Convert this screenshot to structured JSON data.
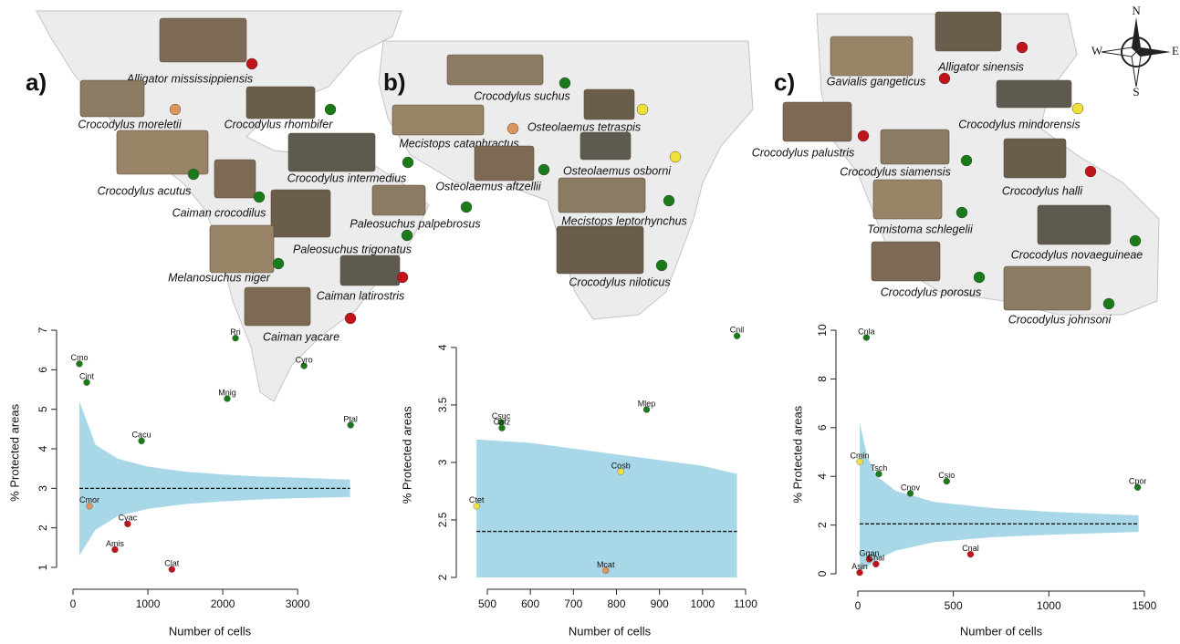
{
  "maps": [
    {
      "label": "a)",
      "species": [
        {
          "name": "Alligator mississippiensis",
          "color": "#c0141a"
        },
        {
          "name": "Crocodylus moreletii",
          "color": "#d9955a"
        },
        {
          "name": "Crocodylus rhombifer",
          "color": "#1a7a1a"
        },
        {
          "name": "Crocodylus acutus",
          "color": "#1a7a1a"
        },
        {
          "name": "Crocodylus intermedius",
          "color": "#1a7a1a"
        },
        {
          "name": "Caiman crocodilus",
          "color": "#1a7a1a"
        },
        {
          "name": "Paleosuchus palpebrosus",
          "color": "#1a7a1a"
        },
        {
          "name": "Paleosuchus trigonatus",
          "color": "#1a7a1a"
        },
        {
          "name": "Melanosuchus niger",
          "color": "#1a7a1a"
        },
        {
          "name": "Caiman latirostris",
          "color": "#c0141a"
        },
        {
          "name": "Caiman yacare",
          "color": "#c0141a"
        }
      ]
    },
    {
      "label": "b)",
      "species": [
        {
          "name": "Crocodylus suchus",
          "color": "#1a7a1a"
        },
        {
          "name": "Osteolaemus tetraspis",
          "color": "#f0e03a"
        },
        {
          "name": "Mecistops cataphractus",
          "color": "#d9955a"
        },
        {
          "name": "Osteolaemus osborni",
          "color": "#f0e03a"
        },
        {
          "name": "Osteolaemus aftzellii",
          "color": "#1a7a1a"
        },
        {
          "name": "Mecistops leptorhynchus",
          "color": "#1a7a1a"
        },
        {
          "name": "Crocodylus niloticus",
          "color": "#1a7a1a"
        }
      ]
    },
    {
      "label": "c)",
      "species": [
        {
          "name": "Alligator sinensis",
          "color": "#c0141a"
        },
        {
          "name": "Gavialis gangeticus",
          "color": "#c0141a"
        },
        {
          "name": "Crocodylus mindorensis",
          "color": "#f0e03a"
        },
        {
          "name": "Crocodylus palustris",
          "color": "#c0141a"
        },
        {
          "name": "Crocodylus siamensis",
          "color": "#1a7a1a"
        },
        {
          "name": "Crocodylus halli",
          "color": "#c0141a"
        },
        {
          "name": "Tomistoma schlegelii",
          "color": "#1a7a1a"
        },
        {
          "name": "Crocodylus novaeguineae",
          "color": "#1a7a1a"
        },
        {
          "name": "Crocodylus porosus",
          "color": "#1a7a1a"
        },
        {
          "name": "Crocodylus johnsoni",
          "color": "#1a7a1a"
        }
      ]
    }
  ],
  "compass": {
    "n": "N",
    "s": "S",
    "e": "E",
    "w": "W"
  },
  "chart_data": [
    {
      "type": "scatter",
      "xlabel": "Number of cells",
      "ylabel": "% Protected areas",
      "xlim": [
        -100,
        3900
      ],
      "ylim": [
        0.7,
        7.1
      ],
      "xticks": [
        0,
        1000,
        2000,
        3000
      ],
      "yticks": [
        1,
        2,
        3,
        4,
        5,
        6,
        7
      ],
      "x": [
        85,
        183,
        2170,
        3085,
        2060,
        3707,
        915,
        220,
        730,
        560,
        1320
      ],
      "values": [
        6.15,
        5.68,
        6.8,
        6.1,
        5.27,
        4.6,
        4.2,
        2.55,
        2.1,
        1.45,
        0.95
      ],
      "labels": [
        "Cmo",
        "Cint",
        "Rri",
        "Cyro",
        "Mnig",
        "Ptal",
        "Cacu",
        "Cmor",
        "Cyac",
        "Amis",
        "Clat"
      ],
      "colors": [
        "#1a7a1a",
        "#1a7a1a",
        "#1a7a1a",
        "#1a7a1a",
        "#1a7a1a",
        "#1a7a1a",
        "#1a7a1a",
        "#d9955a",
        "#c0141a",
        "#c0141a",
        "#c0141a"
      ],
      "envelope": {
        "color": "#a8d8e8",
        "x": [
          85,
          300,
          600,
          1000,
          1500,
          2000,
          2500,
          3000,
          3700
        ],
        "upper": [
          5.2,
          4.1,
          3.75,
          3.55,
          3.42,
          3.35,
          3.3,
          3.27,
          3.22
        ],
        "lower": [
          1.3,
          1.95,
          2.3,
          2.48,
          2.6,
          2.67,
          2.72,
          2.75,
          2.78
        ],
        "mean": [
          3.0,
          3.0,
          3.0,
          3.0,
          3.0,
          3.0,
          3.0,
          3.0,
          3.0
        ]
      }
    },
    {
      "type": "scatter",
      "xlabel": "Number of cells",
      "ylabel": "% Protected areas",
      "xlim": [
        450,
        1100
      ],
      "ylim": [
        1.98,
        4.15
      ],
      "xticks": [
        500,
        600,
        700,
        800,
        900,
        1000,
        1100
      ],
      "yticks": [
        2.0,
        2.5,
        3.0,
        3.5,
        4.0
      ],
      "x": [
        1080,
        870,
        532,
        534,
        810,
        475,
        775
      ],
      "values": [
        4.1,
        3.46,
        3.35,
        3.3,
        2.92,
        2.62,
        2.06
      ],
      "labels": [
        "Cnil",
        "Mlep",
        "Csuc",
        "Cafz",
        "Cosb",
        "Ctet",
        "Mcat"
      ],
      "colors": [
        "#1a7a1a",
        "#1a7a1a",
        "#1a7a1a",
        "#1a7a1a",
        "#f0e03a",
        "#f0e03a",
        "#d9955a"
      ],
      "envelope": {
        "color": "#a8d8e8",
        "x": [
          475,
          600,
          700,
          800,
          900,
          1000,
          1080
        ],
        "upper": [
          3.2,
          3.17,
          3.12,
          3.07,
          3.02,
          2.97,
          2.9
        ],
        "lower": [
          2.0,
          2.0,
          2.0,
          2.0,
          2.0,
          2.0,
          2.0
        ],
        "mean": [
          2.4,
          2.4,
          2.4,
          2.4,
          2.4,
          2.4,
          2.4
        ]
      }
    },
    {
      "type": "scatter",
      "xlabel": "Number of cells",
      "ylabel": "% Protected areas",
      "xlim": [
        -60,
        1560
      ],
      "ylim": [
        -0.4,
        10.2
      ],
      "xticks": [
        0,
        500,
        1000,
        1500
      ],
      "yticks": [
        0,
        2,
        4,
        6,
        8,
        10
      ],
      "x": [
        45,
        10,
        110,
        275,
        465,
        1465,
        590,
        60,
        95,
        10
      ],
      "values": [
        9.7,
        4.6,
        4.1,
        3.3,
        3.8,
        3.55,
        0.8,
        0.6,
        0.4,
        0.05
      ],
      "labels": [
        "Cnla",
        "Cmin",
        "Tsch",
        "Cnov",
        "Csio",
        "Cpor",
        "Cnal",
        "Ggan",
        "Chal",
        "Asin"
      ],
      "colors": [
        "#1a7a1a",
        "#f0e03a",
        "#1a7a1a",
        "#1a7a1a",
        "#1a7a1a",
        "#1a7a1a",
        "#c0141a",
        "#c0141a",
        "#c0141a",
        "#c0141a"
      ],
      "envelope": {
        "color": "#a8d8e8",
        "x": [
          10,
          50,
          100,
          200,
          400,
          700,
          1000,
          1470
        ],
        "upper": [
          6.2,
          4.8,
          4.0,
          3.4,
          2.95,
          2.7,
          2.55,
          2.4
        ],
        "lower": [
          0.1,
          0.3,
          0.6,
          0.95,
          1.3,
          1.5,
          1.6,
          1.72
        ],
        "mean": [
          2.05,
          2.05,
          2.05,
          2.05,
          2.05,
          2.05,
          2.05,
          2.05
        ]
      }
    }
  ]
}
